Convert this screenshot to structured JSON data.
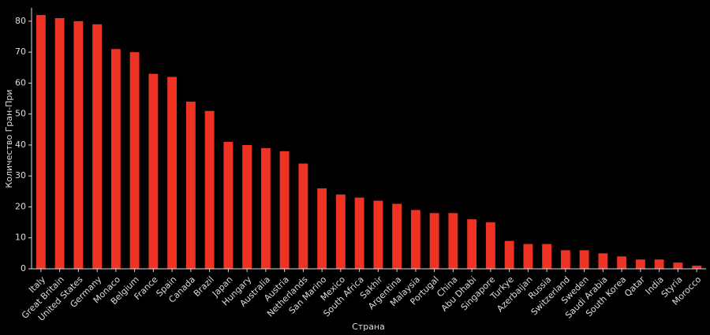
{
  "chart_data": {
    "type": "bar",
    "x_label": "Страна",
    "y_label": "Количество Гран-При",
    "categories": [
      "Italy",
      "Great Britain",
      "United States",
      "Germany",
      "Monaco",
      "Belgium",
      "France",
      "Spain",
      "Canada",
      "Brazil",
      "Japan",
      "Hungary",
      "Australia",
      "Austria",
      "Netherlands",
      "San Marino",
      "Mexico",
      "South Africa",
      "Sakhir",
      "Argentina",
      "Malaysia",
      "Portugal",
      "China",
      "Abu Dhabi",
      "Singapore",
      "Turkye",
      "Azerbaijan",
      "Russia",
      "Switzerland",
      "Sweden",
      "Saudi Arabia",
      "South Korea",
      "Qatar",
      "India",
      "Styria",
      "Morocco"
    ],
    "values": [
      82,
      81,
      80,
      79,
      71,
      70,
      63,
      62,
      54,
      51,
      41,
      40,
      39,
      38,
      34,
      26,
      24,
      23,
      22,
      21,
      19,
      18,
      18,
      16,
      15,
      9,
      8,
      8,
      6,
      6,
      5,
      4,
      3,
      3,
      2,
      1
    ],
    "color": "#ee3224",
    "ylim": [
      0,
      84.3
    ],
    "yticks": [
      0,
      10,
      20,
      30,
      40,
      50,
      60,
      70,
      80
    ],
    "grid": false
  }
}
